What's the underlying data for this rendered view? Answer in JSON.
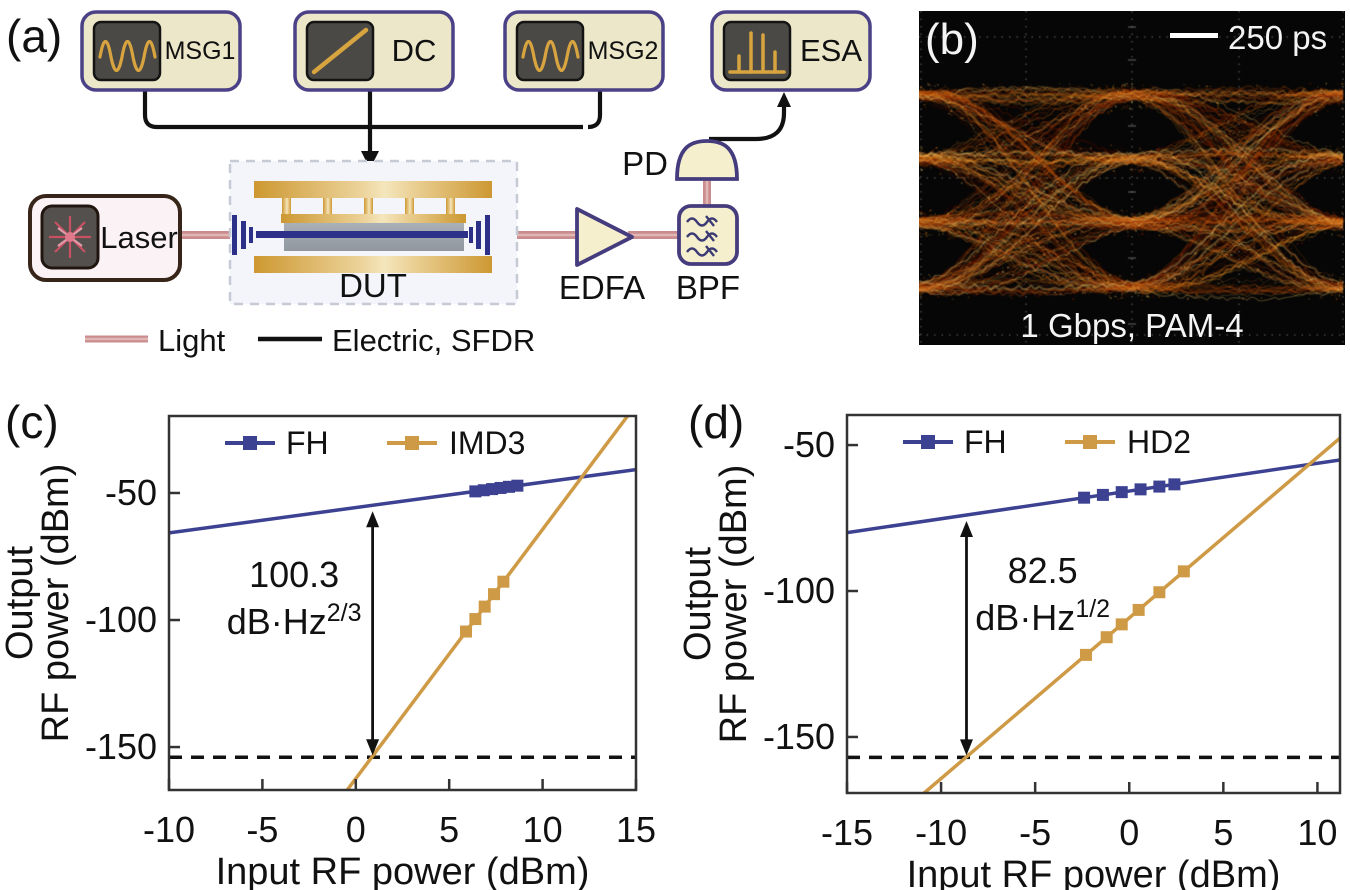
{
  "a": {
    "label": "(a)",
    "instruments": [
      {
        "label": "MSG1",
        "icon": "sine-icon"
      },
      {
        "label": "DC",
        "icon": "ramp-icon"
      },
      {
        "label": "MSG2",
        "icon": "sine-icon"
      },
      {
        "label": "ESA",
        "icon": "spectrum-icon"
      }
    ],
    "laser_label": "Laser",
    "dut_label": "DUT",
    "edfa_label": "EDFA",
    "bpf_label": "BPF",
    "pd_label": "PD",
    "legend": {
      "light_label": "Light",
      "electric_label": "Electric, SFDR"
    },
    "colors": {
      "box_fill": "#ece7c9",
      "box_border": "#4a4186",
      "screen": "#4b4945",
      "gold": "#d7a43f",
      "laser_border": "#372519",
      "laser_fill": "#fbf2f6",
      "light_line": "#c98d8f",
      "light_sheen": "#e2b6b2",
      "navy": "#2c3088",
      "dut_fill": "#f3f5fb",
      "dut_border": "#c6cad4",
      "slab_gray": "#9aa0a9",
      "wire": "#111111"
    }
  },
  "b": {
    "label": "(b)",
    "scalebar_label": "250 ps",
    "caption": "1 Gbps, PAM-4",
    "background": "#060606",
    "trace_palette": [
      "#5f1103",
      "#9c2b05",
      "#cc5f0d",
      "#ec9a2b",
      "#ffd470"
    ],
    "graticule_color": "#8a8a8a"
  },
  "chart_data": [
    {
      "type": "line",
      "panel_label": "(c)",
      "xlabel": "Input RF power (dBm)",
      "ylabel_line1": "Output",
      "ylabel_line2": "RF power (dBm)",
      "xlim": [
        -10,
        15
      ],
      "ylim": [
        -166.9,
        -19.7
      ],
      "xticks": [
        -10,
        -5,
        0,
        5,
        10,
        15
      ],
      "yticks": [
        -50,
        -100,
        -150
      ],
      "grid": false,
      "legend_position": "top-inside",
      "noise_floor_dbm": -154,
      "series": [
        {
          "name": "FH",
          "color": "#3c4191",
          "line": [
            [
              -10,
              -65.7
            ],
            [
              15,
              -40.8
            ]
          ],
          "markers_x": [
            6.4,
            6.85,
            7.3,
            7.75,
            8.2,
            8.65
          ]
        },
        {
          "name": "IMD3",
          "color": "#cf9a46",
          "line": [
            [
              -0.46,
              -166.9
            ],
            [
              14.55,
              -19.7
            ]
          ],
          "markers_x": [
            5.9,
            6.4,
            6.9,
            7.4,
            7.9
          ]
        }
      ],
      "sfdr": {
        "arrow_x": 0.9,
        "value": "100.3",
        "unit_base": "dB·Hz",
        "unit_sup": "2/3",
        "label_x": -3.3,
        "value_y": -87,
        "unit_y": -105.5
      }
    },
    {
      "type": "line",
      "panel_label": "(d)",
      "xlabel": "Input RF power (dBm)",
      "ylabel_line1": "Output",
      "ylabel_line2": "RF power (dBm)",
      "xlim": [
        -15,
        11.2
      ],
      "ylim": [
        -169.2,
        -39.7
      ],
      "xticks": [
        -15,
        -10,
        -5,
        0,
        5,
        10
      ],
      "yticks": [
        -50,
        -100,
        -150
      ],
      "grid": false,
      "legend_position": "top-inside",
      "noise_floor_dbm": -157,
      "series": [
        {
          "name": "FH",
          "color": "#3c4191",
          "line": [
            [
              -15,
              -80
            ],
            [
              11.2,
              -55.1
            ]
          ],
          "markers_x": [
            -2.4,
            -1.4,
            -0.4,
            0.6,
            1.6,
            2.4
          ]
        },
        {
          "name": "HD2",
          "color": "#cf9a46",
          "line": [
            [
              -10.9,
              -169.2
            ],
            [
              11.2,
              -47.6
            ]
          ],
          "markers_x": [
            -2.3,
            -1.2,
            -0.4,
            0.5,
            1.6,
            2.9
          ]
        }
      ],
      "sfdr": {
        "arrow_x": -8.65,
        "value": "82.5",
        "unit_base": "dB·Hz",
        "unit_sup": "1/2",
        "label_x": -4.6,
        "value_y": -97.3,
        "unit_y": -113.4
      }
    }
  ]
}
